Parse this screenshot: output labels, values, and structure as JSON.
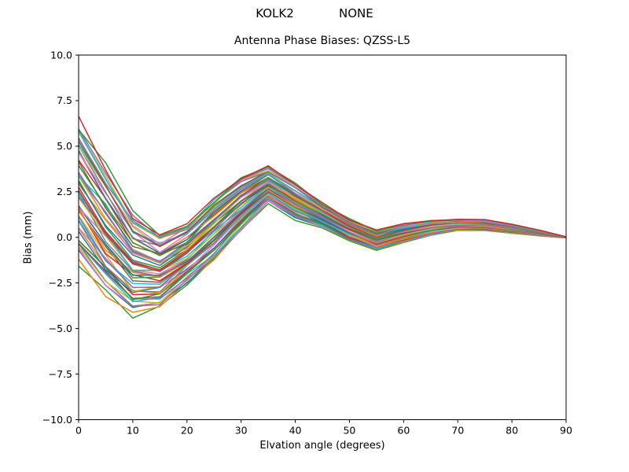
{
  "figure": {
    "suptitle": "KOLK2            NONE",
    "background": "#ffffff",
    "text_color": "#000000"
  },
  "chart_data": {
    "type": "line",
    "title": "Antenna Phase Biases: QZSS-L5",
    "xlabel": "Elvation angle (degrees)",
    "ylabel": "Bias (mm)",
    "xlim": [
      0,
      90
    ],
    "ylim": [
      -10.0,
      10.0
    ],
    "grid": false,
    "legend_position": "none",
    "xticks": [
      0,
      10,
      20,
      30,
      40,
      50,
      60,
      70,
      80,
      90
    ],
    "xtick_labels": [
      "0",
      "10",
      "20",
      "30",
      "40",
      "50",
      "60",
      "70",
      "80",
      "90"
    ],
    "yticks": [
      10.0,
      7.5,
      5.0,
      2.5,
      0.0,
      -2.5,
      -5.0,
      -7.5,
      -10.0
    ],
    "ytick_labels": [
      "10.0",
      "7.5",
      "5.0",
      "2.5",
      "0.0",
      "−2.5",
      "−5.0",
      "−7.5",
      "−10.0"
    ],
    "x": [
      0,
      5,
      10,
      15,
      20,
      25,
      30,
      35,
      40,
      45,
      50,
      55,
      60,
      65,
      70,
      75,
      80,
      85,
      90
    ],
    "envelope_top": [
      6.35,
      3.9,
      1.3,
      0.15,
      0.75,
      2.1,
      3.35,
      3.85,
      2.95,
      1.85,
      1.0,
      0.38,
      0.72,
      0.92,
      1.0,
      1.0,
      0.72,
      0.4,
      0.03
    ],
    "envelope_bottom": [
      -1.2,
      -3.1,
      -4.2,
      -3.8,
      -2.5,
      -1.2,
      0.3,
      1.9,
      1.0,
      0.55,
      -0.15,
      -0.68,
      -0.25,
      0.12,
      0.37,
      0.37,
      0.22,
      0.08,
      -0.03
    ],
    "n_lines": 56,
    "line_width": 1.5,
    "jitter": 0.1,
    "lines": [
      {
        "t": 0.0,
        "color": "#2ca02c"
      },
      {
        "t": 0.018,
        "color": "#ff7f0e"
      },
      {
        "t": 0.036,
        "color": "#1f77b4"
      },
      {
        "t": 0.055,
        "color": "#e377c2"
      },
      {
        "t": 0.073,
        "color": "#7f7f7f"
      },
      {
        "t": 0.091,
        "color": "#bcbd22"
      },
      {
        "t": 0.109,
        "color": "#17becf"
      },
      {
        "t": 0.127,
        "color": "#9467bd"
      },
      {
        "t": 0.145,
        "color": "#8c564b"
      },
      {
        "t": 0.164,
        "color": "#d62728"
      },
      {
        "t": 0.182,
        "color": "#2ca02c"
      },
      {
        "t": 0.2,
        "color": "#ff7f0e"
      },
      {
        "t": 0.218,
        "color": "#1f77b4"
      },
      {
        "t": 0.236,
        "color": "#e377c2"
      },
      {
        "t": 0.255,
        "color": "#7f7f7f"
      },
      {
        "t": 0.273,
        "color": "#bcbd22"
      },
      {
        "t": 0.291,
        "color": "#17becf"
      },
      {
        "t": 0.309,
        "color": "#9467bd"
      },
      {
        "t": 0.327,
        "color": "#8c564b"
      },
      {
        "t": 0.345,
        "color": "#d62728"
      },
      {
        "t": 0.364,
        "color": "#2ca02c"
      },
      {
        "t": 0.382,
        "color": "#ff7f0e"
      },
      {
        "t": 0.4,
        "color": "#1f77b4"
      },
      {
        "t": 0.418,
        "color": "#e377c2"
      },
      {
        "t": 0.436,
        "color": "#7f7f7f"
      },
      {
        "t": 0.455,
        "color": "#bcbd22"
      },
      {
        "t": 0.473,
        "color": "#17becf"
      },
      {
        "t": 0.491,
        "color": "#9467bd"
      },
      {
        "t": 0.509,
        "color": "#8c564b"
      },
      {
        "t": 0.527,
        "color": "#d62728"
      },
      {
        "t": 0.545,
        "color": "#2ca02c"
      },
      {
        "t": 0.564,
        "color": "#ff7f0e"
      },
      {
        "t": 0.582,
        "color": "#1f77b4"
      },
      {
        "t": 0.6,
        "color": "#e377c2"
      },
      {
        "t": 0.618,
        "color": "#7f7f7f"
      },
      {
        "t": 0.636,
        "color": "#bcbd22"
      },
      {
        "t": 0.655,
        "color": "#17becf"
      },
      {
        "t": 0.673,
        "color": "#9467bd"
      },
      {
        "t": 0.691,
        "color": "#8c564b"
      },
      {
        "t": 0.709,
        "color": "#d62728"
      },
      {
        "t": 0.727,
        "color": "#2ca02c"
      },
      {
        "t": 0.745,
        "color": "#ff7f0e"
      },
      {
        "t": 0.764,
        "color": "#1f77b4"
      },
      {
        "t": 0.782,
        "color": "#e377c2"
      },
      {
        "t": 0.8,
        "color": "#7f7f7f"
      },
      {
        "t": 0.818,
        "color": "#bcbd22"
      },
      {
        "t": 0.836,
        "color": "#17becf"
      },
      {
        "t": 0.855,
        "color": "#9467bd"
      },
      {
        "t": 0.873,
        "color": "#8c564b"
      },
      {
        "t": 0.891,
        "color": "#e377c2"
      },
      {
        "t": 0.909,
        "color": "#7f7f7f"
      },
      {
        "t": 0.927,
        "color": "#bcbd22"
      },
      {
        "t": 0.945,
        "color": "#17becf"
      },
      {
        "t": 0.964,
        "color": "#9467bd"
      },
      {
        "t": 0.982,
        "color": "#2ca02c"
      },
      {
        "t": 1.0,
        "color": "#d62728"
      }
    ]
  }
}
